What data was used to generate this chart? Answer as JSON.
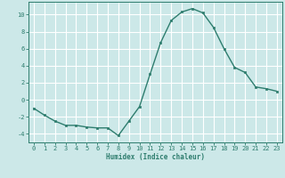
{
  "x": [
    0,
    1,
    2,
    3,
    4,
    5,
    6,
    7,
    8,
    9,
    10,
    11,
    12,
    13,
    14,
    15,
    16,
    17,
    18,
    19,
    20,
    21,
    22,
    23
  ],
  "y": [
    -1.0,
    -1.8,
    -2.5,
    -3.0,
    -3.0,
    -3.2,
    -3.3,
    -3.3,
    -4.2,
    -2.5,
    -0.8,
    3.0,
    6.7,
    9.3,
    10.3,
    10.7,
    10.2,
    8.5,
    6.0,
    3.8,
    3.2,
    1.5,
    1.3,
    1.0
  ],
  "line_color": "#2e7d6e",
  "marker": "s",
  "marker_size": 2.0,
  "bg_color": "#cce8e8",
  "grid_color": "#ffffff",
  "xlabel": "Humidex (Indice chaleur)",
  "ylim": [
    -5,
    11.5
  ],
  "xlim": [
    -0.5,
    23.5
  ],
  "yticks": [
    -4,
    -2,
    0,
    2,
    4,
    6,
    8,
    10
  ],
  "xticks": [
    0,
    1,
    2,
    3,
    4,
    5,
    6,
    7,
    8,
    9,
    10,
    11,
    12,
    13,
    14,
    15,
    16,
    17,
    18,
    19,
    20,
    21,
    22,
    23
  ],
  "xlabel_fontsize": 5.5,
  "tick_fontsize": 5.0,
  "line_width": 1.0
}
